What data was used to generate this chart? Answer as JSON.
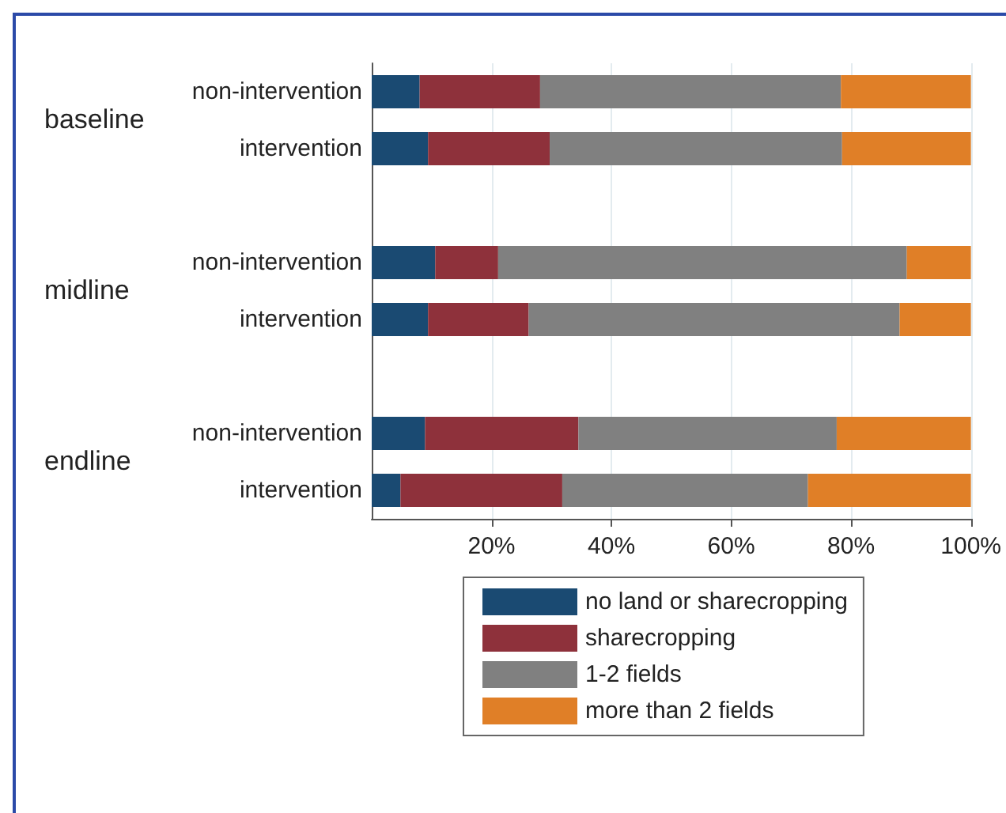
{
  "chart_data": {
    "type": "bar",
    "orientation": "horizontal",
    "stacked": true,
    "categories": [
      "non-intervention",
      "intervention",
      null,
      "non-intervention",
      "intervention",
      null,
      "non-intervention",
      "intervention"
    ],
    "series": [
      {
        "name": "no land or sharecropping",
        "color": "#1a4a72",
        "values": [
          8.0,
          9.4,
          null,
          10.6,
          9.4,
          null,
          8.9,
          4.8
        ]
      },
      {
        "name": "sharecropping",
        "color": "#8e313b",
        "values": [
          20.1,
          20.3,
          null,
          10.5,
          16.8,
          null,
          25.6,
          27.0
        ]
      },
      {
        "name": "1-2 fields",
        "color": "#808080",
        "values": [
          50.2,
          48.8,
          null,
          68.2,
          61.9,
          null,
          43.1,
          41.0
        ]
      },
      {
        "name": "more than 2 fields",
        "color": "#e07f27",
        "values": [
          21.7,
          21.5,
          null,
          10.7,
          11.9,
          null,
          22.4,
          27.2
        ]
      }
    ],
    "annotations": [
      "baseline",
      "midline",
      "endline"
    ],
    "xlim": [
      0,
      100
    ],
    "xticks": [
      {
        "value": 20,
        "label": "20%"
      },
      {
        "value": 40,
        "label": "40%"
      },
      {
        "value": 60,
        "label": "60%"
      },
      {
        "value": 80,
        "label": "80%"
      },
      {
        "value": 100,
        "label": "100%"
      }
    ],
    "grid": "x",
    "legend": "bottom"
  }
}
